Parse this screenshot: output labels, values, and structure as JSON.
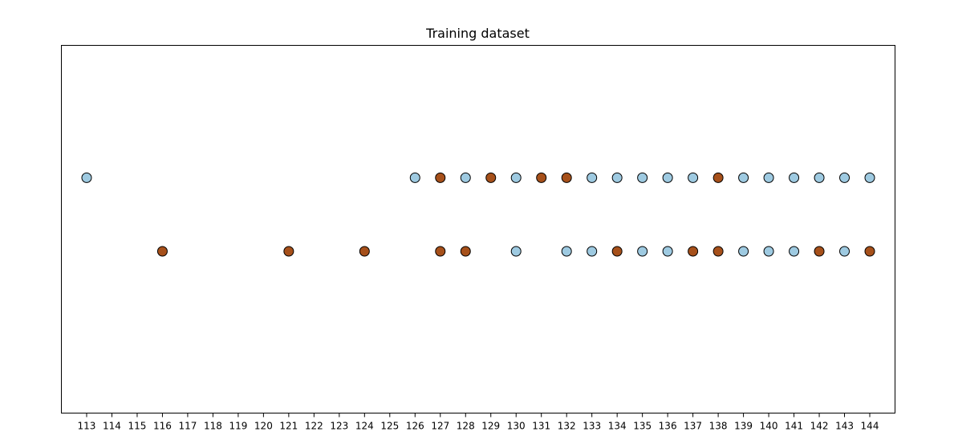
{
  "chart_data": {
    "type": "scatter",
    "title": "Training dataset",
    "xlabel": "",
    "ylabel": "",
    "xlim": [
      112,
      145
    ],
    "ylim": [
      0,
      5
    ],
    "x_ticks": [
      113,
      114,
      115,
      116,
      117,
      118,
      119,
      120,
      121,
      122,
      123,
      124,
      125,
      126,
      127,
      128,
      129,
      130,
      131,
      132,
      133,
      134,
      135,
      136,
      137,
      138,
      139,
      140,
      141,
      142,
      143,
      144
    ],
    "y_ticks": [],
    "grid": false,
    "colors": {
      "class_a": "#9ecae1",
      "class_b": "#a6501a"
    },
    "points": [
      {
        "x": 113,
        "y": 3.2,
        "class": "class_a"
      },
      {
        "x": 126,
        "y": 3.2,
        "class": "class_a"
      },
      {
        "x": 127,
        "y": 3.2,
        "class": "class_b"
      },
      {
        "x": 128,
        "y": 3.2,
        "class": "class_a"
      },
      {
        "x": 129,
        "y": 3.2,
        "class": "class_b"
      },
      {
        "x": 130,
        "y": 3.2,
        "class": "class_a"
      },
      {
        "x": 131,
        "y": 3.2,
        "class": "class_b"
      },
      {
        "x": 132,
        "y": 3.2,
        "class": "class_b"
      },
      {
        "x": 133,
        "y": 3.2,
        "class": "class_a"
      },
      {
        "x": 134,
        "y": 3.2,
        "class": "class_a"
      },
      {
        "x": 135,
        "y": 3.2,
        "class": "class_a"
      },
      {
        "x": 136,
        "y": 3.2,
        "class": "class_a"
      },
      {
        "x": 137,
        "y": 3.2,
        "class": "class_a"
      },
      {
        "x": 138,
        "y": 3.2,
        "class": "class_b"
      },
      {
        "x": 139,
        "y": 3.2,
        "class": "class_a"
      },
      {
        "x": 140,
        "y": 3.2,
        "class": "class_a"
      },
      {
        "x": 141,
        "y": 3.2,
        "class": "class_a"
      },
      {
        "x": 142,
        "y": 3.2,
        "class": "class_a"
      },
      {
        "x": 143,
        "y": 3.2,
        "class": "class_a"
      },
      {
        "x": 144,
        "y": 3.2,
        "class": "class_a"
      },
      {
        "x": 116,
        "y": 2.2,
        "class": "class_b"
      },
      {
        "x": 121,
        "y": 2.2,
        "class": "class_b"
      },
      {
        "x": 124,
        "y": 2.2,
        "class": "class_b"
      },
      {
        "x": 127,
        "y": 2.2,
        "class": "class_b"
      },
      {
        "x": 128,
        "y": 2.2,
        "class": "class_b"
      },
      {
        "x": 130,
        "y": 2.2,
        "class": "class_a"
      },
      {
        "x": 132,
        "y": 2.2,
        "class": "class_a"
      },
      {
        "x": 133,
        "y": 2.2,
        "class": "class_a"
      },
      {
        "x": 134,
        "y": 2.2,
        "class": "class_b"
      },
      {
        "x": 135,
        "y": 2.2,
        "class": "class_a"
      },
      {
        "x": 136,
        "y": 2.2,
        "class": "class_a"
      },
      {
        "x": 137,
        "y": 2.2,
        "class": "class_b"
      },
      {
        "x": 138,
        "y": 2.2,
        "class": "class_b"
      },
      {
        "x": 139,
        "y": 2.2,
        "class": "class_a"
      },
      {
        "x": 140,
        "y": 2.2,
        "class": "class_a"
      },
      {
        "x": 141,
        "y": 2.2,
        "class": "class_a"
      },
      {
        "x": 142,
        "y": 2.2,
        "class": "class_b"
      },
      {
        "x": 143,
        "y": 2.2,
        "class": "class_a"
      },
      {
        "x": 144,
        "y": 2.2,
        "class": "class_b"
      }
    ]
  }
}
